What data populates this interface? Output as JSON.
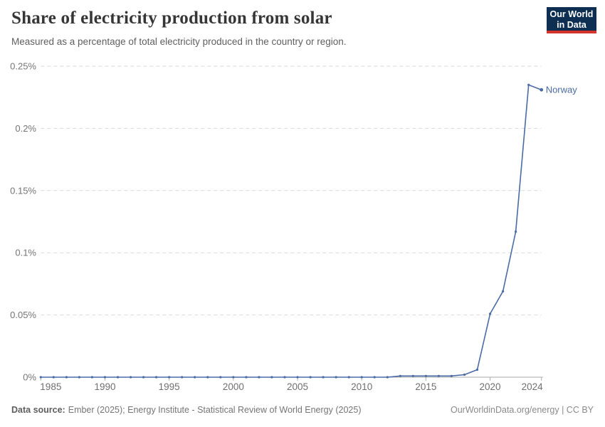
{
  "chart_data": {
    "type": "line",
    "title": "Share of electricity production from solar",
    "subtitle": "Measured as a percentage of total electricity produced in the country or region.",
    "xlabel": "",
    "ylabel": "",
    "xlim": [
      1985,
      2024
    ],
    "ylim": [
      0,
      0.25
    ],
    "x_ticks": [
      1985,
      1990,
      1995,
      2000,
      2005,
      2010,
      2015,
      2020,
      2024
    ],
    "x_tick_labels": [
      "1985",
      "1990",
      "1995",
      "2000",
      "2005",
      "2010",
      "2015",
      "2020",
      "2024"
    ],
    "y_ticks": [
      0,
      0.05,
      0.1,
      0.15,
      0.2,
      0.25
    ],
    "y_tick_labels": [
      "0%",
      "0.05%",
      "0.1%",
      "0.15%",
      "0.2%",
      "0.25%"
    ],
    "grid": "horizontal-dashed",
    "legend_position": "end-of-line-label",
    "series": [
      {
        "name": "Norway",
        "x": [
          1985,
          1986,
          1987,
          1988,
          1989,
          1990,
          1991,
          1992,
          1993,
          1994,
          1995,
          1996,
          1997,
          1998,
          1999,
          2000,
          2001,
          2002,
          2003,
          2004,
          2005,
          2006,
          2007,
          2008,
          2009,
          2010,
          2011,
          2012,
          2013,
          2014,
          2015,
          2016,
          2017,
          2018,
          2019,
          2020,
          2021,
          2022,
          2023,
          2024
        ],
        "values": [
          0,
          0,
          0,
          0,
          0,
          0,
          0,
          0,
          0,
          0,
          0,
          0,
          0,
          0,
          0,
          0,
          0,
          0,
          0,
          0,
          0,
          0,
          0,
          0,
          0,
          0,
          0,
          0,
          0.001,
          0.001,
          0.001,
          0.001,
          0.001,
          0.002,
          0.006,
          0.051,
          0.069,
          0.117,
          0.235,
          0.231
        ]
      }
    ]
  },
  "branding": {
    "logo_line1": "Our World",
    "logo_line2": "in Data"
  },
  "footer": {
    "source_label": "Data source:",
    "source_text": "Ember (2025); Energy Institute - Statistical Review of World Energy (2025)",
    "rights_text": "OurWorldinData.org/energy | CC BY"
  },
  "colors": {
    "line": "#4a6ba5",
    "end_label": "#4a6ba5",
    "title": "#363636",
    "subtitle": "#5f5f5f",
    "grid": "#d9d9d9",
    "axis": "#a8a8a8",
    "tick": "#b0b0b0",
    "y_tick_label": "#757575",
    "x_tick_label": "#6f6f6f",
    "footer": "#757575",
    "logo_bg": "#0e2f51",
    "logo_red": "#d5342b"
  }
}
